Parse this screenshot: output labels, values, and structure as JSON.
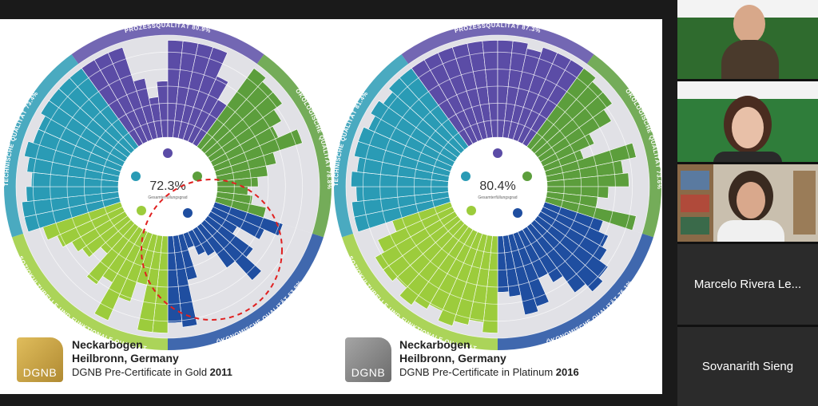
{
  "left_chart": {
    "score": "72.3%",
    "score_label": "Gesamterfüllungsgrad",
    "categories": [
      {
        "name": "PROZESSQUALITÄT",
        "pct": "80.9%"
      },
      {
        "name": "ÖKOLOGISCHE QUALITÄT",
        "pct": "78.8%"
      },
      {
        "name": "ÖKONOMISCHE QUALITÄT",
        "pct": "53.5%"
      },
      {
        "name": "SOZIOKULTURELLE UND FUNKTIONALE QUALITÄT",
        "pct": ""
      },
      {
        "name": "TECHNISCHE QUALITÄT",
        "pct": "73.4%"
      }
    ],
    "caption": {
      "line1": "Neckarbogen",
      "line2": "Heilbronn, Germany",
      "line3_prefix": "DGNB Pre-Certificate in Gold ",
      "year": "2011"
    },
    "logo_text": "DGNB"
  },
  "right_chart": {
    "score": "80.4%",
    "score_label": "Gesamterfüllungsgrad",
    "categories": [
      {
        "name": "PROZESSQUALITÄT",
        "pct": "87.3%"
      },
      {
        "name": "ÖKOLOGISCHE QUALITÄT",
        "pct": "73.6%"
      },
      {
        "name": "ÖKONOMISCHE QUALITÄT",
        "pct": "76.1%"
      },
      {
        "name": "SOZIOKULTURELLE UND FUNKTIONALE QUALITÄT",
        "pct": ""
      },
      {
        "name": "TECHNISCHE QUALITÄT",
        "pct": "81.4%"
      }
    ],
    "caption": {
      "line1": "Neckarbogen",
      "line2": "Heilbronn, Germany",
      "line3_prefix": "DGNB Pre-Certificate in Platinum ",
      "year": "2016"
    },
    "logo_text": "DGNB"
  },
  "participants": [
    {
      "name": "Marcelo Rivera Le..."
    },
    {
      "name": "Sovanarith Sieng"
    }
  ],
  "colors": {
    "process": "#5b4ca6",
    "ecology": "#5c9e3c",
    "economy": "#1f4ea0",
    "social": "#9ccc3c",
    "technical": "#2a9bb5",
    "gold": "#c9a449",
    "gray": "#8a8a8a",
    "bg_ring": "#e1e1e6"
  }
}
